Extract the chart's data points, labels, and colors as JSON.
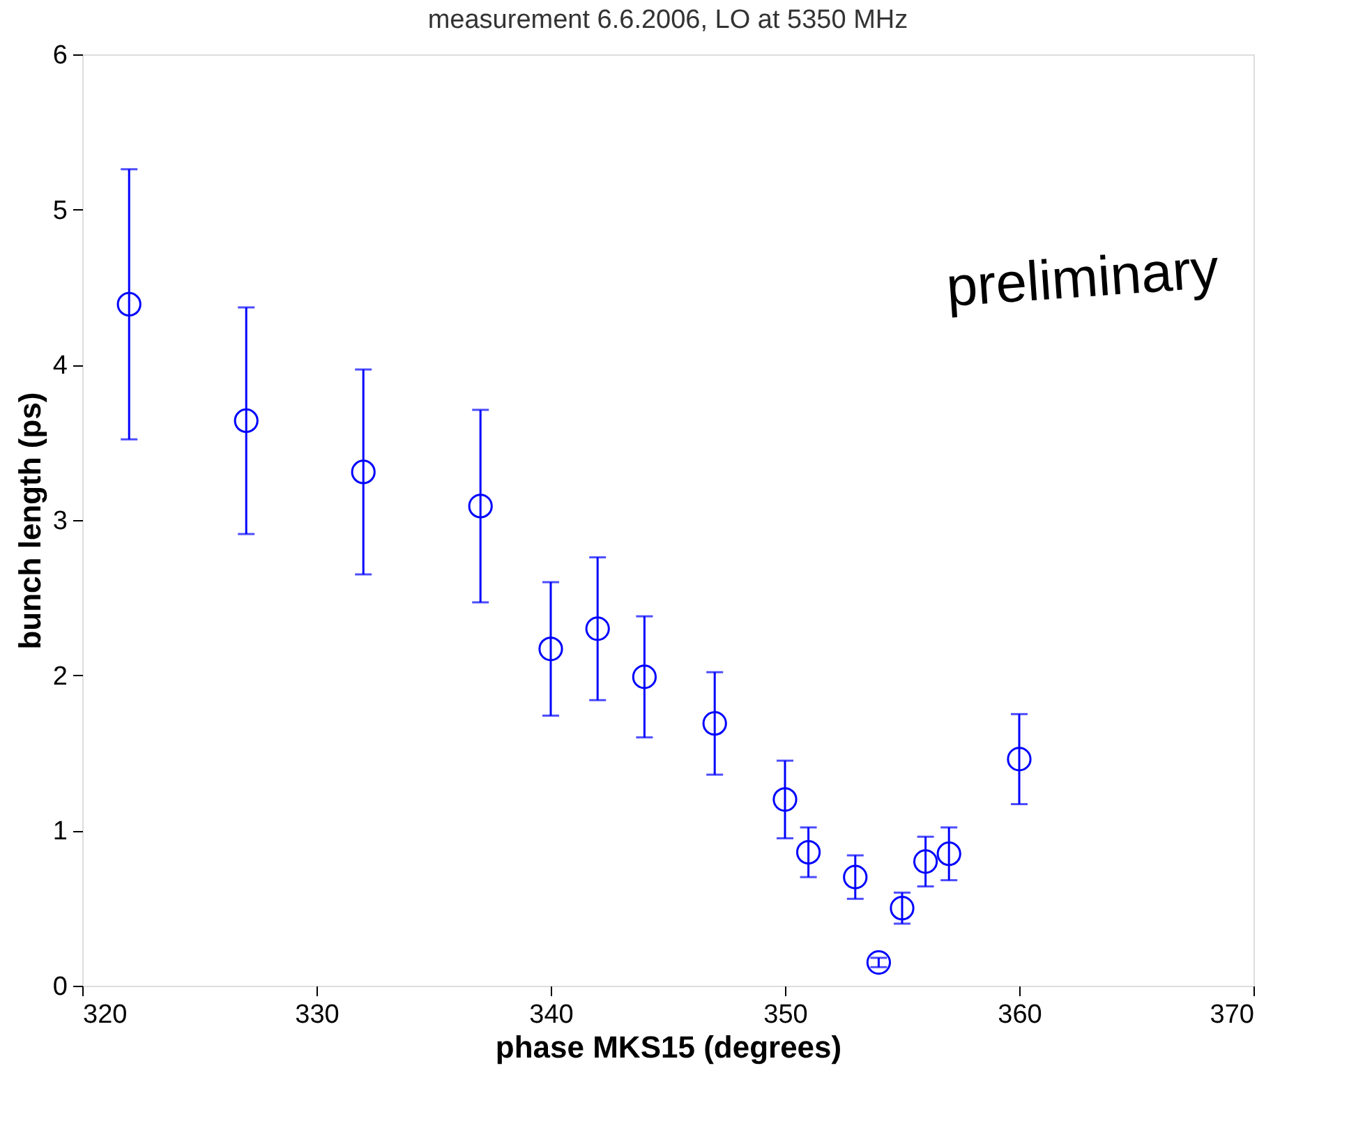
{
  "chart_data": {
    "type": "scatter",
    "title": "measurement 6.6.2006, LO at 5350 MHz",
    "xlabel": "phase MKS15 (degrees)",
    "ylabel": "bunch length (ps)",
    "x": [
      322,
      327,
      332,
      337,
      340,
      342,
      344,
      347,
      350,
      351,
      353,
      354,
      355,
      356,
      357,
      360
    ],
    "values": [
      4.39,
      3.64,
      3.31,
      3.09,
      2.17,
      2.3,
      1.99,
      1.69,
      1.2,
      0.86,
      0.7,
      0.15,
      0.5,
      0.8,
      0.85,
      1.46
    ],
    "errors": [
      0.87,
      0.73,
      0.66,
      0.62,
      0.43,
      0.46,
      0.39,
      0.33,
      0.25,
      0.16,
      0.14,
      0.03,
      0.1,
      0.16,
      0.17,
      0.29
    ],
    "color": "#0000ff",
    "marker": "circle",
    "grid": false,
    "legend": false,
    "xlim": [
      320,
      370
    ],
    "xticks": [
      320,
      330,
      340,
      350,
      360,
      370
    ],
    "ylim": [
      0,
      6
    ],
    "yticks": [
      0,
      1,
      2,
      3,
      4,
      5,
      6
    ],
    "annotations": [
      "preliminary"
    ]
  }
}
